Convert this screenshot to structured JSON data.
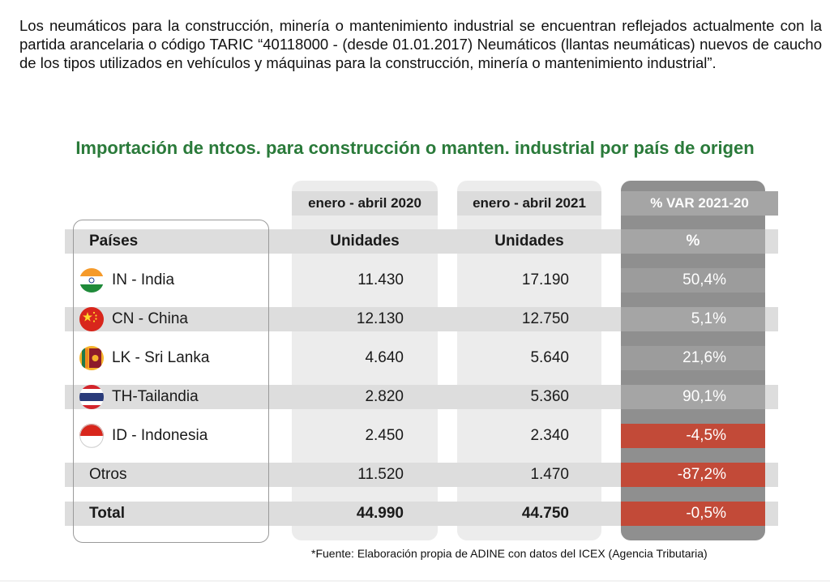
{
  "intro_text": "Los neumáticos para la construcción, minería o mantenimiento industrial se encuentran reflejados actualmente con la partida arancelaria o código TARIC “40118000 - (desde 01.01.2017) Neumáticos (llantas neumáticas) nuevos de caucho de los tipos utilizados en vehículos y máquinas para la construcción, minería o mantenimiento industrial”.",
  "table_title": "Importación de ntcos. para construcción o manten. industrial por país de origen",
  "periods": {
    "p2020": "enero - abril 2020",
    "p2021": "enero - abril 2021",
    "var": "% VAR 2021-20"
  },
  "header": {
    "country": "Países",
    "units_2020": "Unidades",
    "units_2021": "Unidades",
    "pct": "%"
  },
  "rows": [
    {
      "flag": "india-flag-icon",
      "country": "IN - India",
      "u2020": "11.430",
      "u2021": "17.190",
      "pct": "50,4%",
      "negative": false
    },
    {
      "flag": "china-flag-icon",
      "country": "CN - China",
      "u2020": "12.130",
      "u2021": "12.750",
      "pct": "5,1%",
      "negative": false
    },
    {
      "flag": "srilanka-flag-icon",
      "country": "LK - Sri Lanka",
      "u2020": "4.640",
      "u2021": "5.640",
      "pct": "21,6%",
      "negative": false
    },
    {
      "flag": "thailand-flag-icon",
      "country": "TH-Tailandia",
      "u2020": "2.820",
      "u2021": "5.360",
      "pct": "90,1%",
      "negative": false
    },
    {
      "flag": "indonesia-flag-icon",
      "country": "ID - Indonesia",
      "u2020": "2.450",
      "u2021": "2.340",
      "pct": "-4,5%",
      "negative": true
    },
    {
      "flag": "",
      "country": "Otros",
      "u2020": "11.520",
      "u2021": "1.470",
      "pct": "-87,2%",
      "negative": true
    }
  ],
  "total": {
    "label": "Total",
    "u2020": "44.990",
    "u2021": "44.750",
    "pct": "-0,5%"
  },
  "source": "*Fuente: Elaboración propia de ADINE con datos del ICEX (Agencia Tributaria)",
  "colors": {
    "title_green": "#2a7a3a",
    "negative_red": "#c24a38",
    "var_panel_gray": "#8f8f8f"
  }
}
